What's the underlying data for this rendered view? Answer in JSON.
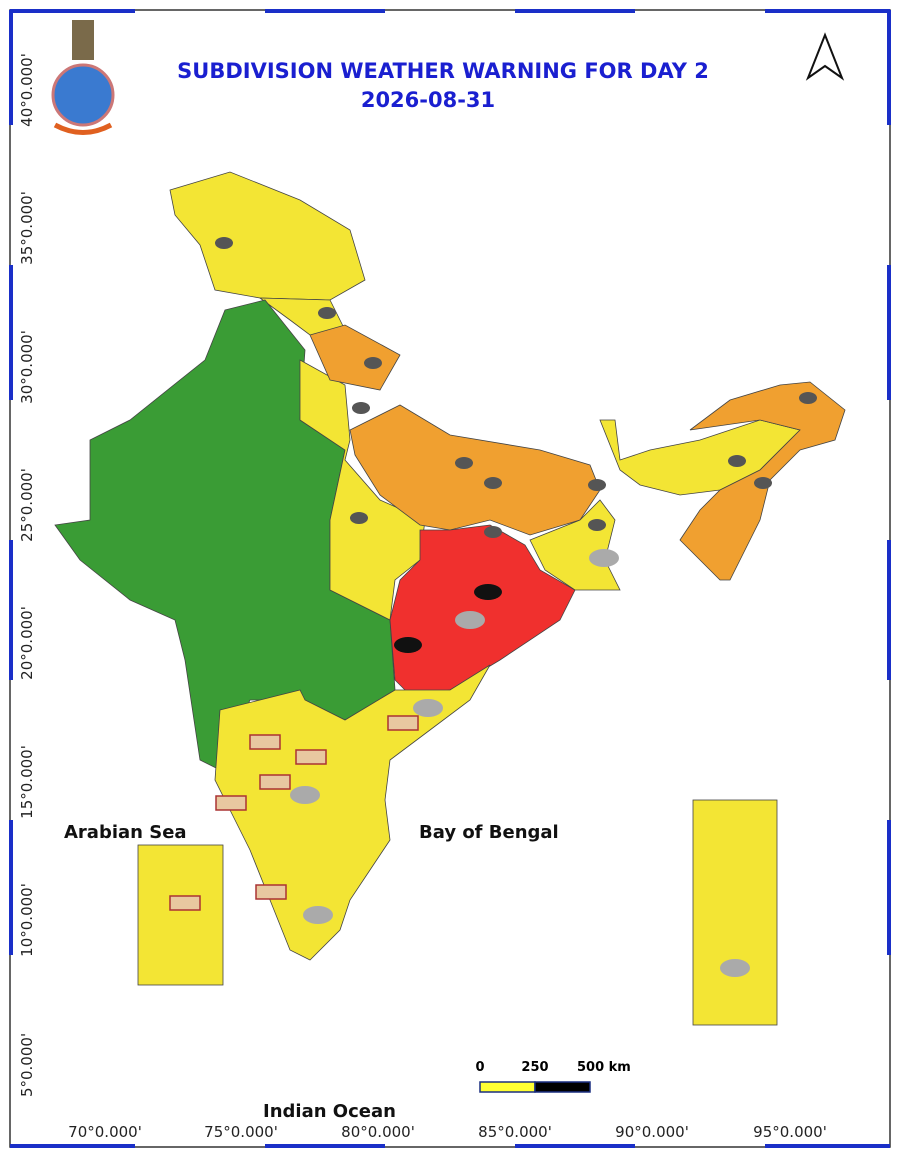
{
  "header": {
    "title": "SUBDIVISION WEATHER WARNING FOR DAY 2",
    "date": "2026-08-31"
  },
  "labels": {
    "arabian_sea": "Arabian Sea",
    "bay_of_bengal": "Bay of Bengal",
    "indian_ocean": "Indian Ocean"
  },
  "scale_bar": {
    "ticks": [
      "0",
      "250",
      "500 km"
    ]
  },
  "latitudes": [
    "40°0.000'",
    "35°0.000'",
    "30°0.000'",
    "25°0.000'",
    "20°0.000'",
    "15°0.000'",
    "10°0.000'",
    "5°0.000'"
  ],
  "longitudes": [
    "70°0.000'",
    "75°0.000'",
    "80°0.000'",
    "85°0.000'",
    "90°0.000'",
    "95°0.000'"
  ]
}
